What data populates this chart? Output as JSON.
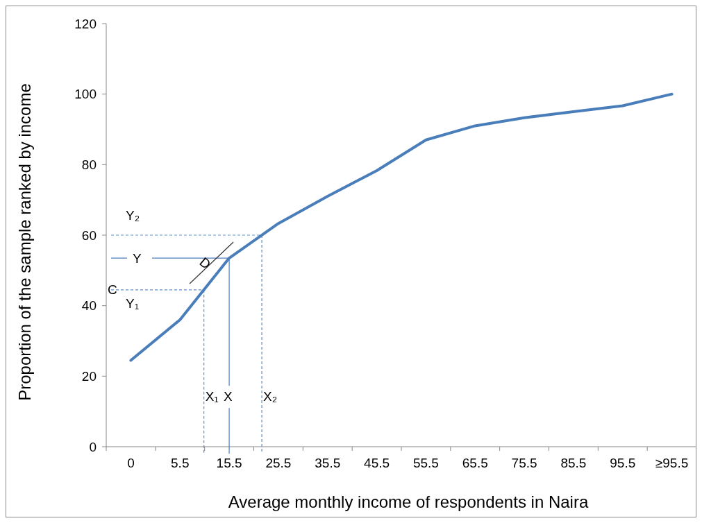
{
  "chart_data": {
    "type": "line",
    "xlabel": "Average monthly income of respondents in Naira",
    "ylabel": "Proportion of the sample ranked by income",
    "categories": [
      "0",
      "5.5",
      "15.5",
      "25.5",
      "35.5",
      "45.5",
      "55.5",
      "65.5",
      "75.5",
      "85.5",
      "95.5",
      "≥95.5"
    ],
    "series": [
      {
        "color": "#4a7ebb",
        "values": [
          24.5,
          36,
          53.5,
          63.3,
          71,
          78.3,
          87,
          91,
          93.3,
          95,
          96.7,
          100
        ]
      }
    ],
    "ylim": [
      0,
      120
    ],
    "yticks": [
      0,
      20,
      40,
      60,
      80,
      100,
      120
    ],
    "grid": false,
    "marker": "none",
    "line_style": "solid",
    "ref_lines": [
      {
        "axis": "y",
        "value": 60,
        "label": "Y₂",
        "line_style": "dashed",
        "color": "#5b8fd0"
      },
      {
        "axis": "y",
        "value": 53.5,
        "label": "Y",
        "line_style": "solid",
        "color": "#4a7ebb"
      },
      {
        "axis": "y",
        "value": 44.5,
        "label": "Y₁",
        "line_style": "dashed",
        "color": "#5b8fd0"
      }
    ],
    "annotations": [
      "X₁",
      {
        "text": "X",
        "x": "15.5",
        "y": 53.5
      },
      "X₂",
      "C",
      "D"
    ]
  }
}
